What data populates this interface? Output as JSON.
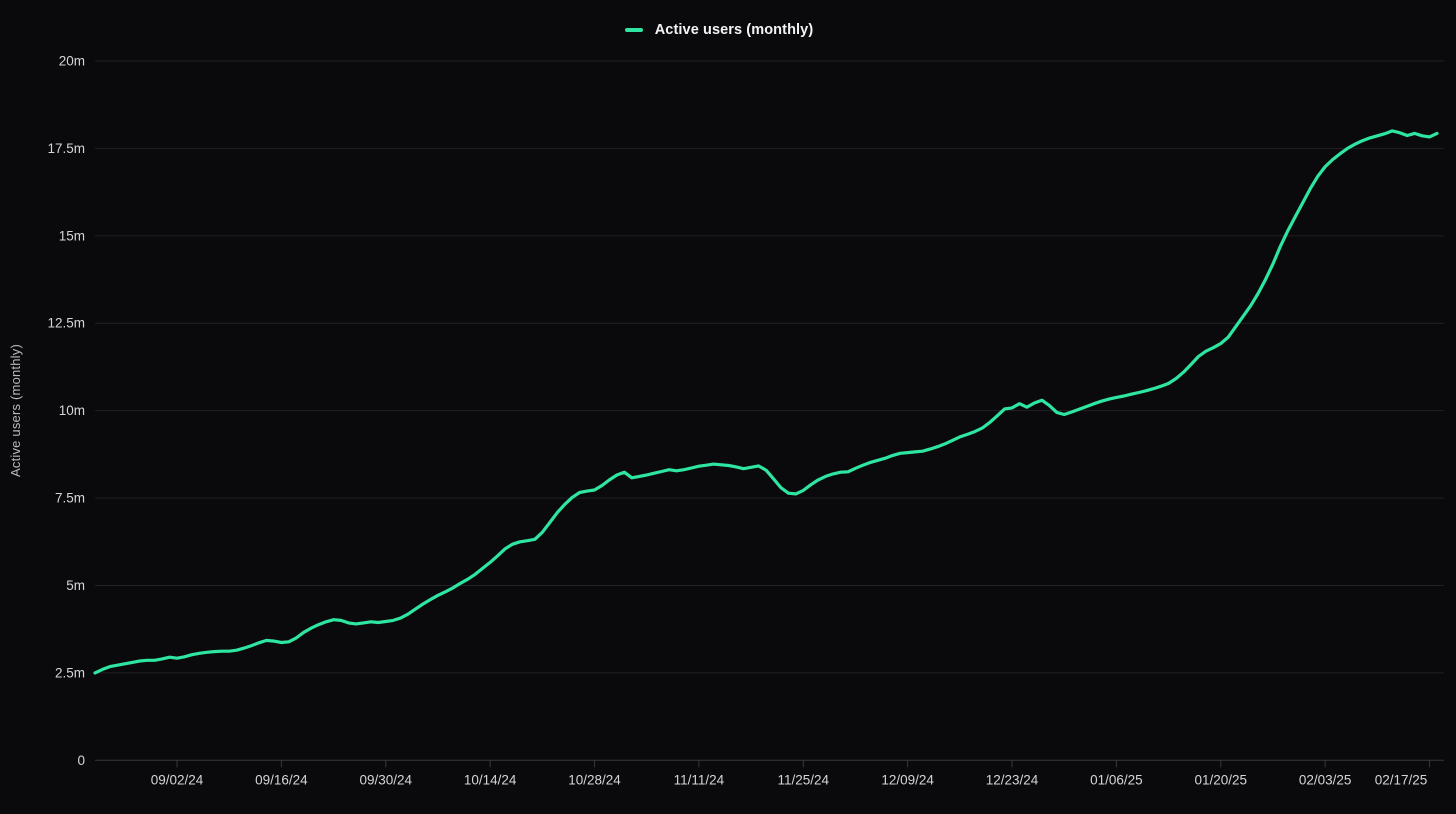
{
  "chart_data": {
    "type": "line",
    "title": "",
    "legend_label": "Active users (monthly)",
    "ylabel": "Active users (monthly)",
    "xlabel": "",
    "unit": "millions of users",
    "grid": "horizontal-only",
    "legend_position": "top-center",
    "x_start_date": "08/22/24",
    "x_interval": "daily",
    "y_axis": {
      "min": 0,
      "max": 20,
      "ticks": [
        {
          "value": 0,
          "label": "0"
        },
        {
          "value": 2.5,
          "label": "2.5m"
        },
        {
          "value": 5,
          "label": "5m"
        },
        {
          "value": 7.5,
          "label": "7.5m"
        },
        {
          "value": 10,
          "label": "10m"
        },
        {
          "value": 12.5,
          "label": "12.5m"
        },
        {
          "value": 15,
          "label": "15m"
        },
        {
          "value": 17.5,
          "label": "17.5m"
        },
        {
          "value": 20,
          "label": "20m"
        }
      ]
    },
    "x_ticks": [
      {
        "day": 11,
        "label": "09/02/24"
      },
      {
        "day": 25,
        "label": "09/16/24"
      },
      {
        "day": 39,
        "label": "09/30/24"
      },
      {
        "day": 53,
        "label": "10/14/24"
      },
      {
        "day": 67,
        "label": "10/28/24"
      },
      {
        "day": 81,
        "label": "11/11/24"
      },
      {
        "day": 95,
        "label": "11/25/24"
      },
      {
        "day": 109,
        "label": "12/09/24"
      },
      {
        "day": 123,
        "label": "12/23/24"
      },
      {
        "day": 137,
        "label": "01/06/25"
      },
      {
        "day": 151,
        "label": "01/20/25"
      },
      {
        "day": 165,
        "label": "02/03/25"
      },
      {
        "day": 179,
        "label": "02/17/25"
      }
    ],
    "series": [
      {
        "name": "Active users (monthly)",
        "values": [
          2.5,
          2.6,
          2.68,
          2.72,
          2.76,
          2.8,
          2.84,
          2.86,
          2.86,
          2.9,
          2.95,
          2.92,
          2.96,
          3.02,
          3.06,
          3.09,
          3.11,
          3.12,
          3.12,
          3.15,
          3.21,
          3.28,
          3.36,
          3.43,
          3.41,
          3.37,
          3.39,
          3.5,
          3.66,
          3.78,
          3.88,
          3.96,
          4.02,
          4.0,
          3.93,
          3.9,
          3.93,
          3.96,
          3.94,
          3.97,
          4.0,
          4.07,
          4.18,
          4.33,
          4.47,
          4.6,
          4.72,
          4.82,
          4.93,
          5.06,
          5.18,
          5.32,
          5.49,
          5.66,
          5.85,
          6.05,
          6.18,
          6.25,
          6.28,
          6.32,
          6.52,
          6.8,
          7.08,
          7.32,
          7.52,
          7.66,
          7.7,
          7.73,
          7.86,
          8.02,
          8.16,
          8.24,
          8.08,
          8.12,
          8.16,
          8.21,
          8.26,
          8.31,
          8.28,
          8.31,
          8.36,
          8.41,
          8.44,
          8.47,
          8.45,
          8.43,
          8.39,
          8.34,
          8.38,
          8.42,
          8.3,
          8.05,
          7.8,
          7.64,
          7.62,
          7.72,
          7.88,
          8.02,
          8.12,
          8.19,
          8.24,
          8.25,
          8.35,
          8.44,
          8.52,
          8.58,
          8.64,
          8.72,
          8.78,
          8.8,
          8.82,
          8.84,
          8.9,
          8.97,
          9.05,
          9.15,
          9.25,
          9.32,
          9.4,
          9.5,
          9.66,
          9.85,
          10.05,
          10.08,
          10.2,
          10.1,
          10.22,
          10.3,
          10.15,
          9.95,
          9.89,
          9.96,
          10.04,
          10.12,
          10.2,
          10.27,
          10.33,
          10.38,
          10.42,
          10.47,
          10.52,
          10.57,
          10.63,
          10.7,
          10.78,
          10.92,
          11.1,
          11.32,
          11.55,
          11.7,
          11.8,
          11.92,
          12.1,
          12.4,
          12.7,
          13.0,
          13.35,
          13.75,
          14.2,
          14.7,
          15.15,
          15.55,
          15.95,
          16.35,
          16.7,
          16.98,
          17.18,
          17.35,
          17.5,
          17.62,
          17.72,
          17.8,
          17.86,
          17.92,
          18.0,
          17.95,
          17.87,
          17.93,
          17.86,
          17.83,
          17.93
        ]
      }
    ],
    "colors": {
      "line": "#2ee6a2",
      "background": "#0a0a0c",
      "grid": "#222226",
      "axis": "#38383c",
      "tick_text": "#d4d5d6",
      "axis_title_text": "#b9babc",
      "legend_text": "#f2f3f4"
    }
  }
}
